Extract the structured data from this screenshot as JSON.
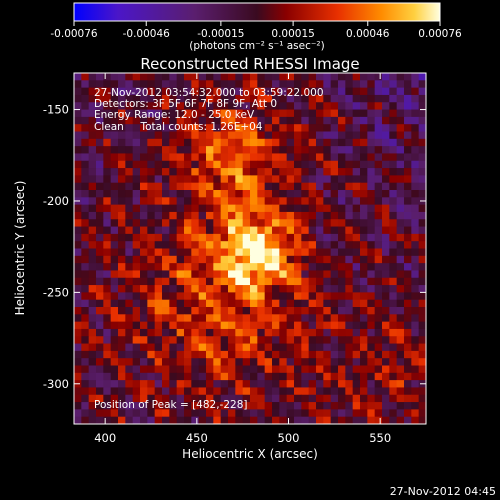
{
  "chart_data": {
    "type": "heatmap",
    "title": "Reconstructed RHESSI Image",
    "xlabel": "Heliocentric X (arcsec)",
    "ylabel": "Heliocentric Y (arcsec)",
    "xlim": [
      383,
      575
    ],
    "ylim": [
      -322,
      -130
    ],
    "x_ticks": [
      400,
      450,
      500,
      550
    ],
    "y_ticks": [
      -150,
      -200,
      -250,
      -300
    ],
    "colorbar": {
      "range": [
        -0.00076,
        0.00076
      ],
      "ticks": [
        "-0.00076",
        "-0.00046",
        "-0.00015",
        "0.00015",
        "0.00046",
        "0.00076"
      ],
      "unit_label": "(photons cm⁻² s⁻¹ asec⁻²)"
    },
    "peak": {
      "x": 482,
      "y": -228,
      "value": 0.00076
    },
    "annotations": [
      "27-Nov-2012 03:54:32.000 to 03:59:22.000",
      "Detectors: 3F 5F 6F 7F 8F 9F, Att 0",
      "Energy Range: 12.0 - 25.0 keV",
      "Clean     Total counts: 1.26E+04",
      "Position of Peak = [482,-228]"
    ],
    "footer_timestamp": "27-Nov-2012 04:45",
    "grid_resolution": 48
  }
}
